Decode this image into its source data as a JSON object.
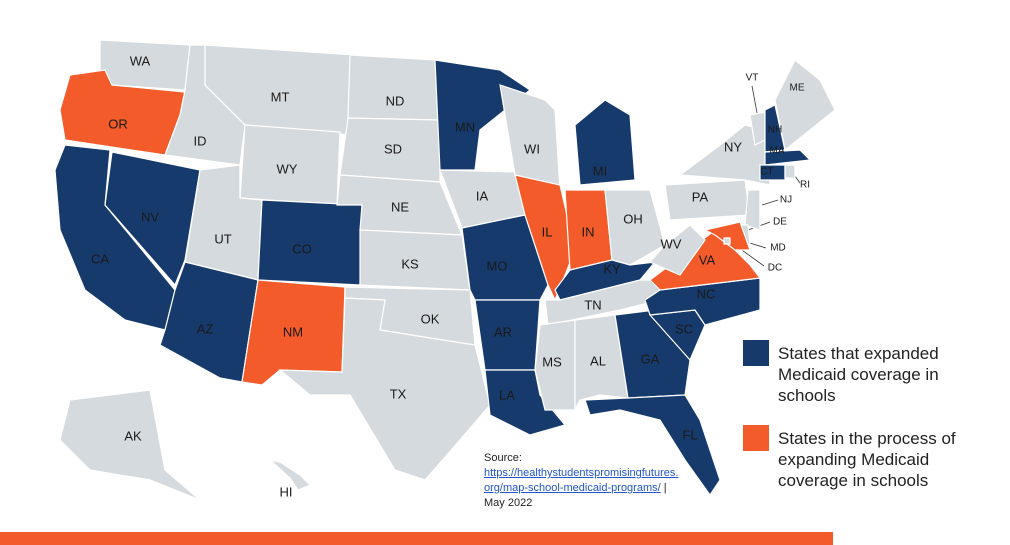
{
  "map": {
    "default_color": "#d5dade",
    "states": [
      {
        "label": "WA",
        "status": "none"
      },
      {
        "label": "OR",
        "status": "in_process"
      },
      {
        "label": "CA",
        "status": "expanded"
      },
      {
        "label": "NV",
        "status": "expanded"
      },
      {
        "label": "ID",
        "status": "none"
      },
      {
        "label": "MT",
        "status": "none"
      },
      {
        "label": "WY",
        "status": "none"
      },
      {
        "label": "UT",
        "status": "none"
      },
      {
        "label": "AZ",
        "status": "expanded"
      },
      {
        "label": "CO",
        "status": "expanded"
      },
      {
        "label": "NM",
        "status": "in_process"
      },
      {
        "label": "ND",
        "status": "none"
      },
      {
        "label": "SD",
        "status": "none"
      },
      {
        "label": "NE",
        "status": "none"
      },
      {
        "label": "KS",
        "status": "none"
      },
      {
        "label": "OK",
        "status": "none"
      },
      {
        "label": "TX",
        "status": "none"
      },
      {
        "label": "MN",
        "status": "expanded"
      },
      {
        "label": "IA",
        "status": "none"
      },
      {
        "label": "MO",
        "status": "expanded"
      },
      {
        "label": "AR",
        "status": "expanded"
      },
      {
        "label": "LA",
        "status": "expanded"
      },
      {
        "label": "WI",
        "status": "none"
      },
      {
        "label": "IL",
        "status": "in_process"
      },
      {
        "label": "MI",
        "status": "expanded"
      },
      {
        "label": "IN",
        "status": "in_process"
      },
      {
        "label": "OH",
        "status": "none"
      },
      {
        "label": "KY",
        "status": "expanded"
      },
      {
        "label": "TN",
        "status": "none"
      },
      {
        "label": "MS",
        "status": "none"
      },
      {
        "label": "AL",
        "status": "none"
      },
      {
        "label": "GA",
        "status": "expanded"
      },
      {
        "label": "FL",
        "status": "expanded"
      },
      {
        "label": "SC",
        "status": "expanded"
      },
      {
        "label": "NC",
        "status": "expanded"
      },
      {
        "label": "VA",
        "status": "in_process"
      },
      {
        "label": "WV",
        "status": "none"
      },
      {
        "label": "PA",
        "status": "none"
      },
      {
        "label": "NY",
        "status": "none"
      },
      {
        "label": "VT",
        "status": "none"
      },
      {
        "label": "NH",
        "status": "expanded"
      },
      {
        "label": "ME",
        "status": "none"
      },
      {
        "label": "MA",
        "status": "expanded"
      },
      {
        "label": "CT",
        "status": "expanded"
      },
      {
        "label": "RI",
        "status": "none"
      },
      {
        "label": "NJ",
        "status": "none"
      },
      {
        "label": "DE",
        "status": "none"
      },
      {
        "label": "MD",
        "status": "in_process"
      },
      {
        "label": "DC",
        "status": "none"
      },
      {
        "label": "AK",
        "status": "none"
      },
      {
        "label": "HI",
        "status": "none"
      }
    ],
    "legend": [
      {
        "status": "expanded",
        "color": "#163a6c",
        "text": "States that expanded Medicaid coverage in schools"
      },
      {
        "status": "in_process",
        "color": "#f35b2a",
        "text": "States in the process of expanding Medicaid coverage in schools"
      }
    ]
  },
  "source": {
    "label": "Source:",
    "link": "https://healthystudentspromisingfutures.org/map-school-medicaid-programs/",
    "separator": "|",
    "date": "May 2022"
  }
}
